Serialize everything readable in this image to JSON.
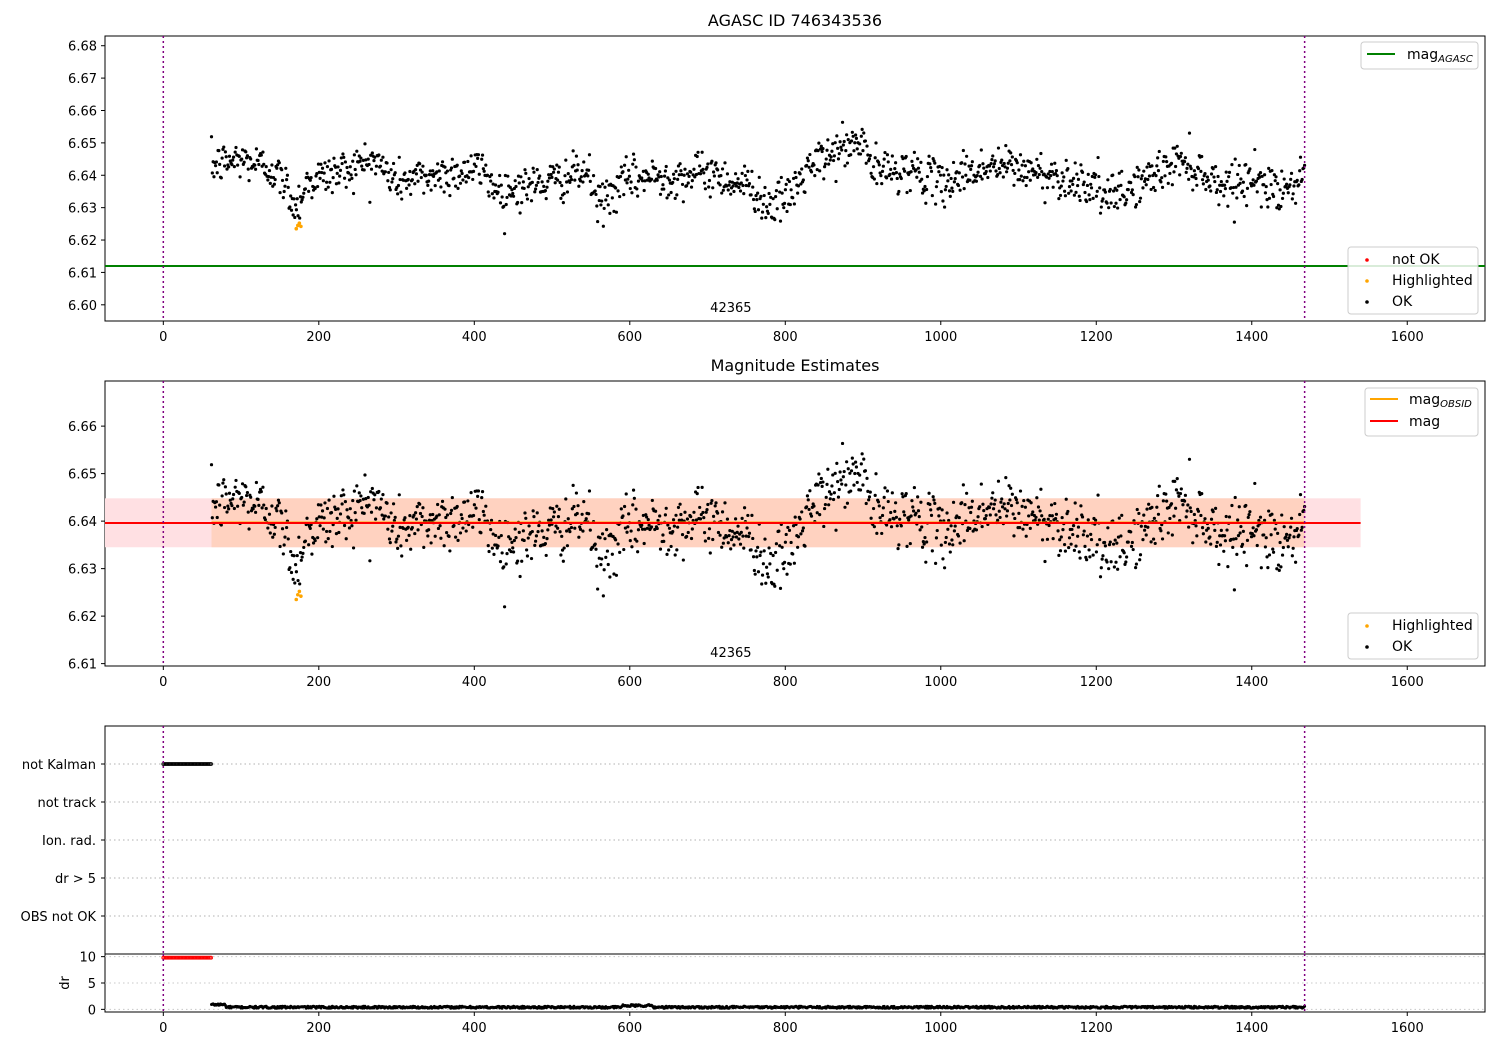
{
  "chart_data": [
    {
      "type": "scatter",
      "title": "AGASC ID 746343536",
      "xlim": [
        -75,
        1700
      ],
      "ylim": [
        6.595,
        6.683
      ],
      "xticks": [
        "0",
        "200",
        "400",
        "600",
        "800",
        "1000",
        "1200",
        "1400",
        "1600"
      ],
      "yticks": [
        "6.60",
        "6.61",
        "6.62",
        "6.63",
        "6.64",
        "6.65",
        "6.66",
        "6.67",
        "6.68"
      ],
      "annotation": "42365",
      "annotation_x": 730,
      "vlines": [
        0,
        1468
      ],
      "hline": {
        "name": "mag_AGASC",
        "y": 6.612,
        "color": "#008000"
      },
      "legend_lines": [
        {
          "label": "mag",
          "subscript": "AGASC",
          "color": "#008000"
        }
      ],
      "legend_markers": [
        {
          "label": "not OK",
          "color": "#ff0000"
        },
        {
          "label": "Highlighted",
          "color": "#ffa500"
        },
        {
          "label": "OK",
          "color": "#000000"
        }
      ],
      "series": [
        {
          "name": "OK",
          "x_range": [
            62,
            1468
          ],
          "mean": 6.6395,
          "color": "#000000"
        },
        {
          "name": "Highlighted",
          "x": [
            171,
            173,
            175,
            177
          ],
          "y": [
            6.6235,
            6.6245,
            6.6252,
            6.6242
          ],
          "color": "#ffa500"
        }
      ]
    },
    {
      "type": "scatter",
      "title": "Magnitude Estimates",
      "xlim": [
        -75,
        1700
      ],
      "ylim": [
        6.6095,
        6.6695
      ],
      "xticks": [
        "0",
        "200",
        "400",
        "600",
        "800",
        "1000",
        "1200",
        "1400",
        "1600"
      ],
      "yticks": [
        "6.61",
        "6.62",
        "6.63",
        "6.64",
        "6.65",
        "6.66"
      ],
      "annotation": "42365",
      "annotation_x": 730,
      "vlines": [
        0,
        1468
      ],
      "bands": [
        {
          "y": [
            6.6345,
            6.6448
          ],
          "x": [
            -75,
            1540
          ],
          "color": "#ffe0e3"
        },
        {
          "y": [
            6.6345,
            6.6448
          ],
          "x": [
            62,
            1468
          ],
          "color": "#ffd2c0"
        }
      ],
      "lines": [
        {
          "name": "mag_OBSID",
          "y": 6.6397,
          "x": [
            62,
            1468
          ],
          "color": "#ffa500"
        },
        {
          "name": "mag",
          "y": 6.6396,
          "x": [
            -75,
            1540
          ],
          "color": "#ff0000"
        }
      ],
      "legend_lines": [
        {
          "label": "mag",
          "subscript": "OBSID",
          "color": "#ffa500"
        },
        {
          "label": "mag",
          "subscript": "",
          "color": "#ff0000"
        }
      ],
      "legend_markers": [
        {
          "label": "Highlighted",
          "color": "#ffa500"
        },
        {
          "label": "OK",
          "color": "#000000"
        }
      ],
      "series": [
        {
          "name": "OK",
          "x_range": [
            62,
            1468
          ],
          "mean": 6.6395,
          "color": "#000000"
        },
        {
          "name": "Highlighted",
          "x": [
            171,
            173,
            175,
            177
          ],
          "y": [
            6.6235,
            6.6245,
            6.6252,
            6.6242
          ],
          "color": "#ffa500"
        }
      ]
    },
    {
      "type": "scatter",
      "title": "",
      "xlim": [
        -75,
        1700
      ],
      "categories": [
        "not Kalman",
        "not track",
        "Ion. rad.",
        "dr > 5",
        "OBS not OK"
      ],
      "vlines": [
        0,
        1468
      ],
      "flags": [
        {
          "category": "not Kalman",
          "x_range": [
            0,
            62
          ],
          "color": "#000000"
        }
      ]
    },
    {
      "type": "scatter",
      "title": "",
      "ylabel": "dr",
      "xlim": [
        -75,
        1700
      ],
      "ylim": [
        -0.5,
        10.5
      ],
      "xticks": [
        "0",
        "200",
        "400",
        "600",
        "800",
        "1000",
        "1200",
        "1400",
        "1600"
      ],
      "yticks": [
        "0",
        "5",
        "10"
      ],
      "vlines": [
        0,
        1468
      ],
      "series": [
        {
          "name": "dr (not OK)",
          "x_range": [
            0,
            62
          ],
          "y": 9.8,
          "color": "#ff0000"
        },
        {
          "name": "dr",
          "x_range": [
            62,
            1468
          ],
          "y_range": [
            0.1,
            1.1
          ],
          "color": "#000000"
        }
      ]
    }
  ]
}
